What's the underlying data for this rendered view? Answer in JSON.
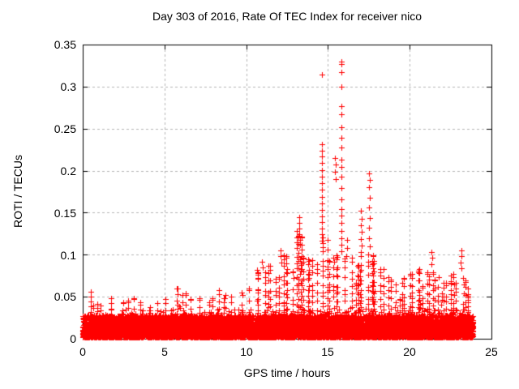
{
  "chart_data": {
    "type": "scatter",
    "title": "Day 303 of 2016, Rate Of TEC Index for receiver nico",
    "xlabel": "GPS time / hours",
    "ylabel": "ROTI / TECUs",
    "xlim": [
      0,
      25
    ],
    "ylim": [
      0,
      0.35
    ],
    "xticks": [
      "0",
      "5",
      "10",
      "15",
      "20",
      "25"
    ],
    "xtick_values": [
      0,
      5,
      10,
      15,
      20,
      25
    ],
    "yticks": [
      "0",
      "0.05",
      "0.1",
      "0.15",
      "0.2",
      "0.25",
      "0.3",
      "0.35"
    ],
    "ytick_values": [
      0,
      0.05,
      0.1,
      0.15,
      0.2,
      0.25,
      0.3,
      0.35
    ],
    "grid": true,
    "grid_style": "dashed",
    "legend": "none",
    "marker": "plus",
    "marker_color": "#ff0000",
    "grid_color": "#b5b5b5",
    "border_color": "#000000",
    "background_color": "#ffffff",
    "series_name": "ROTI",
    "data_start_hour": 0.0,
    "data_end_hour": 23.87,
    "baseline_band": {
      "min_value": 0.002,
      "dense_top": 0.028,
      "note": "continuous dense band of + markers from ~0 to ~0.03 TECU across all hours"
    },
    "envelope_bin_hours": 0.5,
    "envelope_max": [
      0.06,
      0.045,
      0.042,
      0.05,
      0.045,
      0.048,
      0.052,
      0.044,
      0.04,
      0.045,
      0.048,
      0.062,
      0.055,
      0.048,
      0.052,
      0.05,
      0.062,
      0.055,
      0.052,
      0.058,
      0.062,
      0.08,
      0.09,
      0.075,
      0.1,
      0.085,
      0.13,
      0.1,
      0.095,
      0.125,
      0.1,
      0.105,
      0.1,
      0.092,
      0.105,
      0.1,
      0.085,
      0.075,
      0.07,
      0.072,
      0.08,
      0.085,
      0.08,
      0.075,
      0.072,
      0.078,
      0.075,
      0.062
    ],
    "outliers": [
      [
        10.68,
        0.082
      ],
      [
        10.72,
        0.076
      ],
      [
        10.95,
        0.092
      ],
      [
        11.02,
        0.085
      ],
      [
        12.08,
        0.105
      ],
      [
        12.1,
        0.098
      ],
      [
        12.13,
        0.091
      ],
      [
        13.22,
        0.145
      ],
      [
        13.24,
        0.138
      ],
      [
        13.26,
        0.131
      ],
      [
        13.23,
        0.124
      ],
      [
        13.27,
        0.118
      ],
      [
        13.3,
        0.112
      ],
      [
        14.62,
        0.314
      ],
      [
        14.63,
        0.231
      ],
      [
        14.61,
        0.224
      ],
      [
        14.64,
        0.217
      ],
      [
        14.62,
        0.209
      ],
      [
        14.63,
        0.201
      ],
      [
        14.61,
        0.193
      ],
      [
        14.64,
        0.185
      ],
      [
        14.62,
        0.177
      ],
      [
        14.63,
        0.169
      ],
      [
        14.61,
        0.161
      ],
      [
        14.62,
        0.153
      ],
      [
        14.64,
        0.146
      ],
      [
        14.61,
        0.139
      ],
      [
        14.63,
        0.131
      ],
      [
        14.62,
        0.124
      ],
      [
        14.63,
        0.117
      ],
      [
        15.45,
        0.215
      ],
      [
        15.47,
        0.207
      ],
      [
        15.44,
        0.199
      ],
      [
        15.46,
        0.19
      ],
      [
        15.81,
        0.33
      ],
      [
        15.83,
        0.327
      ],
      [
        15.81,
        0.317
      ],
      [
        15.82,
        0.3
      ],
      [
        15.81,
        0.277
      ],
      [
        15.83,
        0.267
      ],
      [
        15.82,
        0.252
      ],
      [
        15.81,
        0.239
      ],
      [
        15.83,
        0.228
      ],
      [
        15.81,
        0.213
      ],
      [
        15.82,
        0.204
      ],
      [
        15.81,
        0.193
      ],
      [
        15.83,
        0.179
      ],
      [
        15.82,
        0.166
      ],
      [
        15.81,
        0.154
      ],
      [
        15.83,
        0.147
      ],
      [
        15.81,
        0.138
      ],
      [
        15.82,
        0.128
      ],
      [
        15.81,
        0.12
      ],
      [
        15.83,
        0.112
      ],
      [
        15.81,
        0.104
      ],
      [
        16.15,
        0.118
      ],
      [
        16.17,
        0.108
      ],
      [
        16.13,
        0.098
      ],
      [
        17.02,
        0.152
      ],
      [
        17.04,
        0.143
      ],
      [
        17.01,
        0.135
      ],
      [
        17.05,
        0.127
      ],
      [
        17.02,
        0.119
      ],
      [
        17.04,
        0.111
      ],
      [
        17.01,
        0.103
      ],
      [
        17.53,
        0.197
      ],
      [
        17.55,
        0.189
      ],
      [
        17.51,
        0.18
      ],
      [
        17.54,
        0.168
      ],
      [
        17.52,
        0.156
      ],
      [
        17.55,
        0.144
      ],
      [
        17.53,
        0.132
      ],
      [
        17.51,
        0.12
      ],
      [
        17.54,
        0.11
      ],
      [
        21.35,
        0.103
      ],
      [
        21.37,
        0.096
      ],
      [
        21.33,
        0.089
      ],
      [
        23.15,
        0.105
      ],
      [
        23.17,
        0.098
      ],
      [
        23.13,
        0.091
      ],
      [
        23.16,
        0.084
      ]
    ]
  }
}
